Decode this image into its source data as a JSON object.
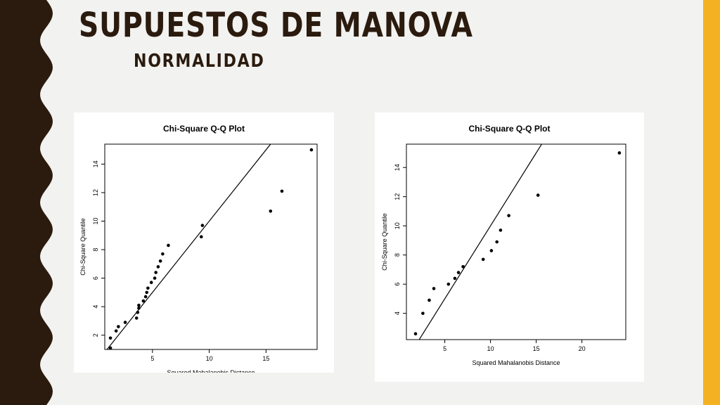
{
  "slide": {
    "title": "SUPUESTOS DE MANOVA",
    "subtitle": "NORMALIDAD",
    "colors": {
      "dark_band": "#2b1b0e",
      "accent": "#f4b223",
      "background": "#f2f2f0"
    }
  },
  "chart_data": [
    {
      "type": "scatter",
      "title": "Chi-Square Q-Q Plot",
      "xlabel": "Squared Mahalanobis Distance",
      "ylabel": "Chi-Square Quantile",
      "xlim": [
        0.8,
        19.5
      ],
      "ylim": [
        1.0,
        15.4
      ],
      "xticks": [
        5,
        10,
        15
      ],
      "yticks": [
        2,
        4,
        6,
        8,
        10,
        12,
        14
      ],
      "reference_line": "y = x",
      "points": [
        [
          1.3,
          1.1
        ],
        [
          1.3,
          1.8
        ],
        [
          1.8,
          2.3
        ],
        [
          2.0,
          2.6
        ],
        [
          2.6,
          2.9
        ],
        [
          3.6,
          3.2
        ],
        [
          3.7,
          3.6
        ],
        [
          3.8,
          3.9
        ],
        [
          3.8,
          4.1
        ],
        [
          4.2,
          4.4
        ],
        [
          4.4,
          4.7
        ],
        [
          4.5,
          5.0
        ],
        [
          4.6,
          5.3
        ],
        [
          4.9,
          5.7
        ],
        [
          5.2,
          6.0
        ],
        [
          5.3,
          6.4
        ],
        [
          5.5,
          6.8
        ],
        [
          5.7,
          7.2
        ],
        [
          5.9,
          7.7
        ],
        [
          6.4,
          8.3
        ],
        [
          9.3,
          8.9
        ],
        [
          9.4,
          9.7
        ],
        [
          15.4,
          10.7
        ],
        [
          16.4,
          12.1
        ],
        [
          19.0,
          15.0
        ]
      ]
    },
    {
      "type": "scatter",
      "title": "Chi-Square Q-Q Plot",
      "xlabel": "Squared Mahalanobis Distance",
      "ylabel": "Chi-Square Quantile",
      "xlim": [
        0.8,
        24.8
      ],
      "ylim": [
        2.2,
        15.6
      ],
      "xticks": [
        5,
        10,
        15,
        20
      ],
      "yticks": [
        4,
        6,
        8,
        10,
        12,
        14
      ],
      "reference_line": "y = x",
      "points": [
        [
          1.8,
          2.6
        ],
        [
          2.6,
          4.0
        ],
        [
          3.3,
          4.9
        ],
        [
          3.8,
          5.7
        ],
        [
          5.4,
          6.0
        ],
        [
          6.1,
          6.4
        ],
        [
          6.5,
          6.8
        ],
        [
          7.0,
          7.2
        ],
        [
          9.2,
          7.7
        ],
        [
          10.1,
          8.3
        ],
        [
          10.7,
          8.9
        ],
        [
          11.1,
          9.7
        ],
        [
          12.0,
          10.7
        ],
        [
          15.2,
          12.1
        ],
        [
          24.1,
          15.0
        ]
      ]
    }
  ]
}
